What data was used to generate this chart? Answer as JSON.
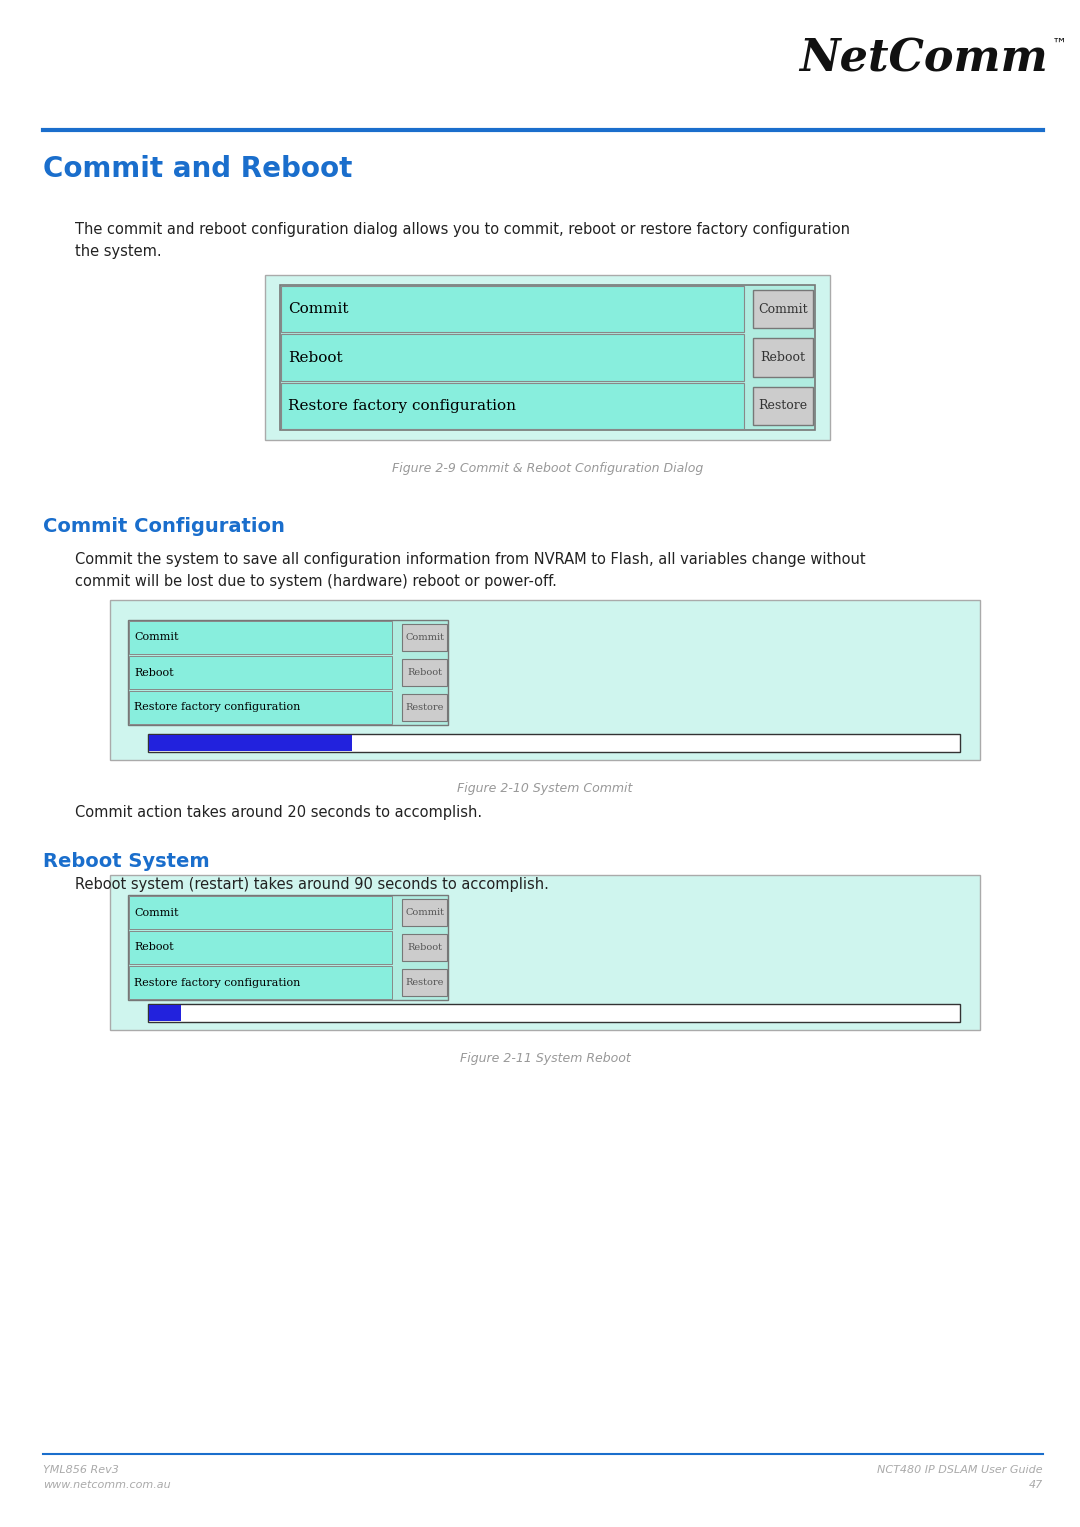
{
  "page_bg": "#ffffff",
  "header_line_color": "#1a6ecc",
  "footer_line_color": "#1a6ecc",
  "logo_text": "NetComm",
  "logo_tm": "™",
  "main_title": "Commit and Reboot",
  "main_title_color": "#1a6ecc",
  "section1_title": "Commit Configuration",
  "section1_title_color": "#1a6ecc",
  "section2_title": "Reboot System",
  "section2_title_color": "#1a6ecc",
  "body_text_color": "#222222",
  "body_font_size": 10.5,
  "intro_text": "The commit and reboot configuration dialog allows you to commit, reboot or restore factory configuration\nthe system.",
  "section1_text": "Commit the system to save all configuration information from NVRAM to Flash, all variables change without\ncommit will be lost due to system (hardware) reboot or power-off.",
  "section1_note": "Commit action takes around 20 seconds to accomplish.",
  "section2_text": "Reboot system (restart) takes around 90 seconds to accomplish.",
  "fig1_caption": "Figure 2-9 Commit & Reboot Configuration Dialog",
  "fig2_caption": "Figure 2-10 System Commit",
  "fig3_caption": "Figure 2-11 System Reboot",
  "outer_bg": "#cff5ee",
  "inner_bg": "#b0ece0",
  "row_bg": "#88eedd",
  "button_bg": "#cccccc",
  "button_border": "#888888",
  "progress_bg": "#ffffff",
  "progress_fill": "#2222dd",
  "footer_left1": "YML856 Rev3",
  "footer_left2": "www.netcomm.com.au",
  "footer_right1": "NCT480 IP DSLAM User Guide",
  "footer_right2": "47",
  "footer_color": "#aaaaaa",
  "caption_color": "#999999"
}
